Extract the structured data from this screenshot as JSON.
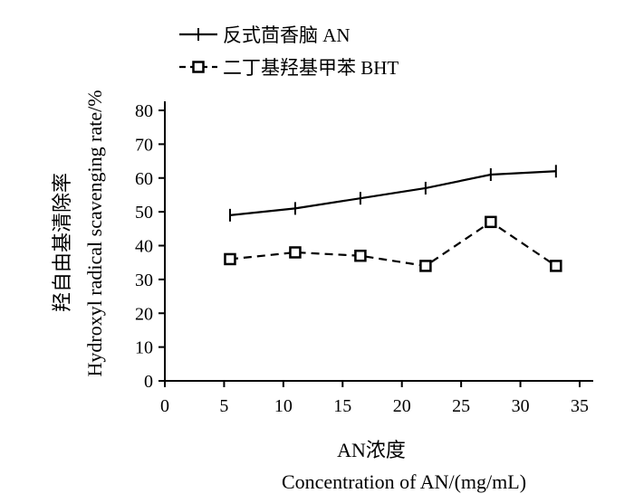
{
  "chart_data": {
    "type": "line",
    "x": [
      5.5,
      11,
      16.5,
      22,
      27.5,
      33
    ],
    "series": [
      {
        "name": "反式茴香脑  AN",
        "marker": "plus",
        "dash": "solid",
        "values": [
          49,
          51,
          54,
          57,
          61,
          62
        ]
      },
      {
        "name": "二丁基羟基甲苯  BHT",
        "marker": "square",
        "dash": "dashed",
        "values": [
          36,
          38,
          37,
          34,
          47,
          34
        ]
      }
    ],
    "xlim": [
      0,
      35
    ],
    "ylim": [
      0,
      80
    ],
    "xticks": [
      0,
      5,
      10,
      15,
      20,
      25,
      30,
      35
    ],
    "yticks": [
      0,
      10,
      20,
      30,
      40,
      50,
      60,
      70,
      80
    ],
    "xlabel": [
      "AN浓度",
      "Concentration of AN/(mg/mL)"
    ],
    "ylabel": [
      "羟自由基清除率",
      "Hydroxyl radical scavenging rate/%"
    ],
    "legend_position": "top-left",
    "grid": false
  }
}
